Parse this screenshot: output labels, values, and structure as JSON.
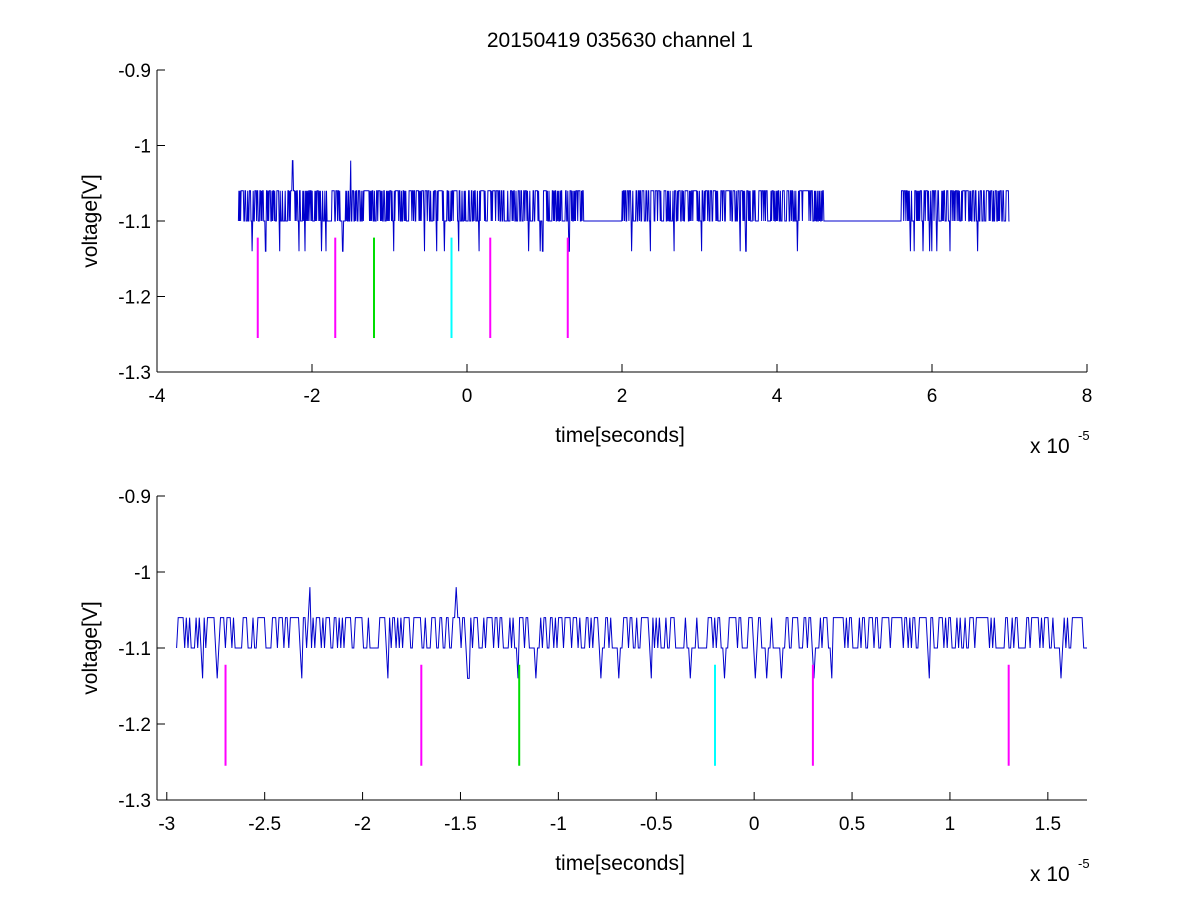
{
  "figure": {
    "title": "20150419 035630 channel 1"
  },
  "chart_data": [
    {
      "type": "line",
      "title": "20150419 035630 channel 1",
      "xlabel": "time[seconds]",
      "ylabel": "voltage[V]",
      "x_multiplier": "x 10",
      "x_exponent": "-5",
      "xlim": [
        -4,
        8
      ],
      "ylim": [
        -1.3,
        -0.9
      ],
      "xticks": [
        -4,
        -2,
        0,
        2,
        4,
        6,
        8
      ],
      "xtick_labels": [
        "-4",
        "-2",
        "0",
        "2",
        "4",
        "6",
        "8"
      ],
      "yticks": [
        -0.9,
        -1,
        -1.1,
        -1.2,
        -1.3
      ],
      "ytick_labels": [
        "-0.9",
        "-1",
        "-1.1",
        "-1.2",
        "-1.3"
      ],
      "grid": false,
      "series": [
        {
          "color": "#0000cc",
          "x_range": [
            -2.95,
            7.0
          ],
          "base_level": -1.1,
          "upper_level": -1.06,
          "lower_level": -1.14,
          "spikes": [
            {
              "x": -2.25,
              "y": -1.02
            },
            {
              "x": -1.5,
              "y": -1.02
            }
          ]
        }
      ],
      "markers": [
        {
          "x": -2.7,
          "y_range": [
            -1.255,
            -1.122
          ],
          "color": "#ff00ff"
        },
        {
          "x": -1.7,
          "y_range": [
            -1.255,
            -1.122
          ],
          "color": "#ff00ff"
        },
        {
          "x": -1.2,
          "y_range": [
            -1.255,
            -1.122
          ],
          "color": "#00dd00"
        },
        {
          "x": -0.2,
          "y_range": [
            -1.255,
            -1.122
          ],
          "color": "#00ffff"
        },
        {
          "x": 0.3,
          "y_range": [
            -1.255,
            -1.122
          ],
          "color": "#ff00ff"
        },
        {
          "x": 1.3,
          "y_range": [
            -1.255,
            -1.122
          ],
          "color": "#ff00ff"
        }
      ]
    },
    {
      "type": "line",
      "title": "",
      "xlabel": "time[seconds]",
      "ylabel": "voltage[V]",
      "x_multiplier": "x 10",
      "x_exponent": "-5",
      "xlim": [
        -3.05,
        1.7
      ],
      "ylim": [
        -1.3,
        -0.9
      ],
      "xticks": [
        -3,
        -2.5,
        -2,
        -1.5,
        -1,
        -0.5,
        0,
        0.5,
        1,
        1.5
      ],
      "xtick_labels": [
        "-3",
        "-2.5",
        "-2",
        "-1.5",
        "-1",
        "-0.5",
        "0",
        "0.5",
        "1",
        "1.5"
      ],
      "yticks": [
        -0.9,
        -1,
        -1.1,
        -1.2,
        -1.3
      ],
      "ytick_labels": [
        "-0.9",
        "-1",
        "-1.1",
        "-1.2",
        "-1.3"
      ],
      "grid": false,
      "series": [
        {
          "color": "#0000cc",
          "x_range": [
            -2.95,
            1.7
          ],
          "base_level": -1.1,
          "upper_level": -1.06,
          "lower_level": -1.14,
          "spikes": [
            {
              "x": -2.27,
              "y": -1.02
            },
            {
              "x": -1.52,
              "y": -1.02
            }
          ]
        }
      ],
      "markers": [
        {
          "x": -2.7,
          "y_range": [
            -1.255,
            -1.122
          ],
          "color": "#ff00ff"
        },
        {
          "x": -1.7,
          "y_range": [
            -1.255,
            -1.122
          ],
          "color": "#ff00ff"
        },
        {
          "x": -1.2,
          "y_range": [
            -1.255,
            -1.122
          ],
          "color": "#00dd00"
        },
        {
          "x": -0.2,
          "y_range": [
            -1.255,
            -1.122
          ],
          "color": "#00ffff"
        },
        {
          "x": 0.3,
          "y_range": [
            -1.255,
            -1.122
          ],
          "color": "#ff00ff"
        },
        {
          "x": 1.3,
          "y_range": [
            -1.255,
            -1.122
          ],
          "color": "#ff00ff"
        }
      ]
    }
  ]
}
